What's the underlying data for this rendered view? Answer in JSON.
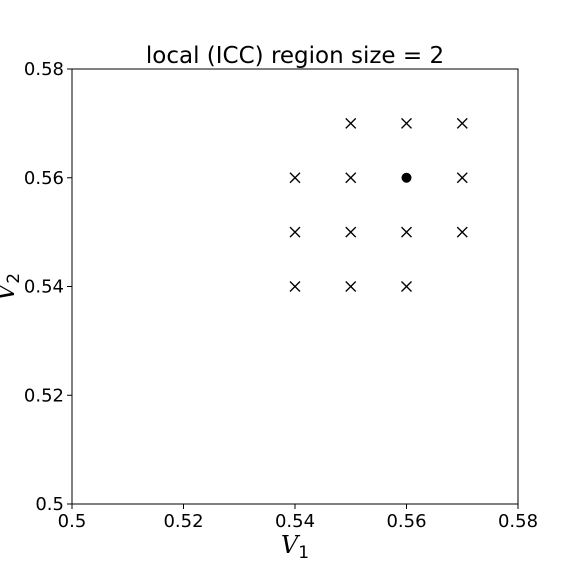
{
  "chart_data": {
    "type": "scatter",
    "title": "local (ICC) region size = 2",
    "xlabel": {
      "base": "V",
      "sub": "1"
    },
    "ylabel": {
      "base": "V",
      "sub": "2"
    },
    "xlim": [
      0.5,
      0.58
    ],
    "ylim": [
      0.5,
      0.58
    ],
    "xticks": [
      0.5,
      0.52,
      0.54,
      0.56,
      0.58
    ],
    "yticks": [
      0.5,
      0.52,
      0.54,
      0.56,
      0.58
    ],
    "xtick_labels": [
      "0.5",
      "0.52",
      "0.54",
      "0.56",
      "0.58"
    ],
    "ytick_labels": [
      "0.5",
      "0.52",
      "0.54",
      "0.56",
      "0.58"
    ],
    "grid": false,
    "series": [
      {
        "marker": "x",
        "color": "#000000",
        "points": [
          [
            0.55,
            0.57
          ],
          [
            0.56,
            0.57
          ],
          [
            0.57,
            0.57
          ],
          [
            0.54,
            0.56
          ],
          [
            0.55,
            0.56
          ],
          [
            0.57,
            0.56
          ],
          [
            0.54,
            0.55
          ],
          [
            0.55,
            0.55
          ],
          [
            0.56,
            0.55
          ],
          [
            0.57,
            0.55
          ],
          [
            0.54,
            0.54
          ],
          [
            0.55,
            0.54
          ],
          [
            0.56,
            0.54
          ]
        ]
      },
      {
        "marker": "o",
        "color": "#000000",
        "points": [
          [
            0.56,
            0.56
          ]
        ]
      }
    ]
  }
}
